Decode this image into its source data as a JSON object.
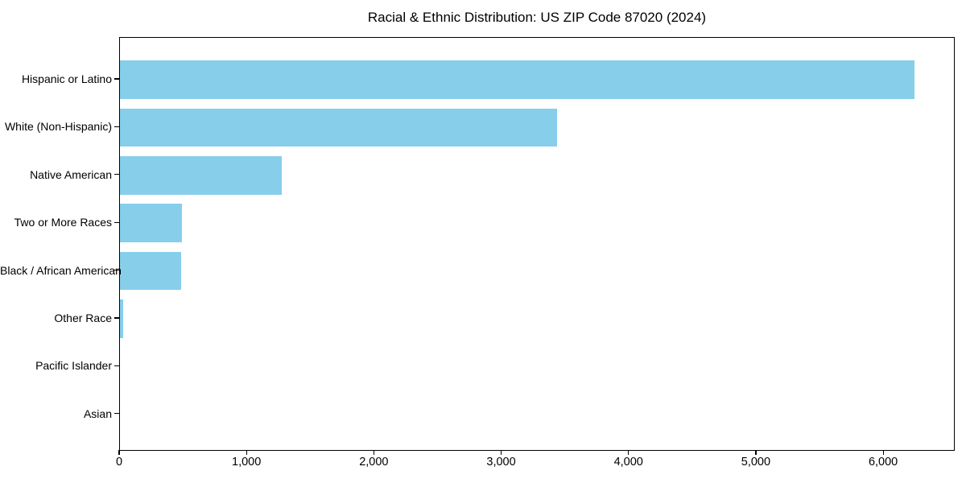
{
  "chart_data": {
    "type": "bar",
    "orientation": "horizontal",
    "title": "Racial & Ethnic Distribution: US ZIP Code 87020 (2024)",
    "categories": [
      "Hispanic or Latino",
      "White (Non-Hispanic)",
      "Native American",
      "Two or More Races",
      "Black / African American",
      "Other Race",
      "Pacific Islander",
      "Asian"
    ],
    "values": [
      6250,
      3440,
      1270,
      490,
      480,
      25,
      0,
      0
    ],
    "xlabel": "",
    "ylabel": "",
    "xlim": [
      0,
      6562
    ],
    "xticks": [
      0,
      1000,
      2000,
      3000,
      4000,
      5000,
      6000
    ],
    "xtick_labels": [
      "0",
      "1,000",
      "2,000",
      "3,000",
      "4,000",
      "5,000",
      "6,000"
    ],
    "bar_color": "#87CEEB",
    "axis_color": "#000000",
    "text_color": "#000000",
    "background_color": "#FFFFFF",
    "grid": false,
    "legend": null
  }
}
